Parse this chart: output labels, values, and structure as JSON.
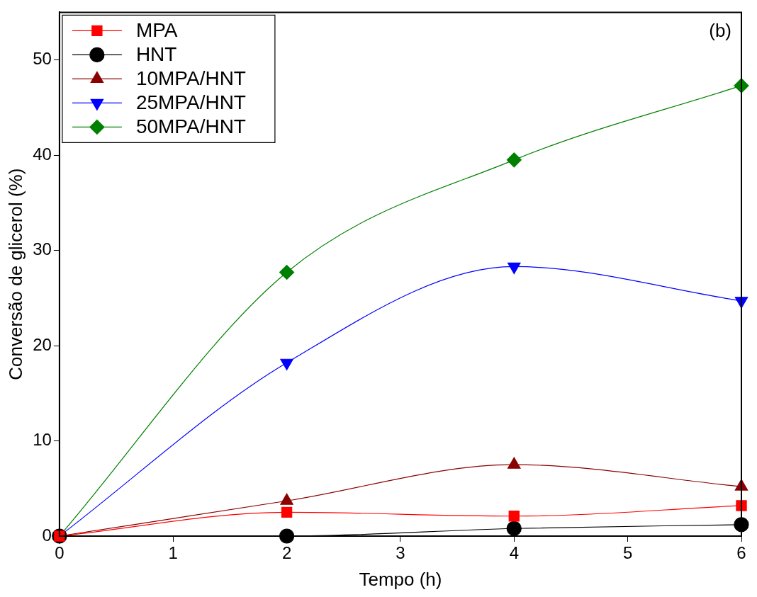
{
  "chart_data": {
    "type": "line",
    "xlabel": "Tempo (h)",
    "ylabel": "Conversão de glicerol (%)",
    "x": [
      0,
      2,
      4,
      6
    ],
    "series": [
      {
        "name": "MPA",
        "color": "#ff0000",
        "marker": "square",
        "values": [
          0,
          2.5,
          2.1,
          3.2
        ]
      },
      {
        "name": "HNT",
        "color": "#000000",
        "marker": "circle",
        "values": [
          0,
          0,
          0.8,
          1.2
        ]
      },
      {
        "name": "10MPA/HNT",
        "color": "#8b0000",
        "marker": "triangle",
        "values": [
          0,
          3.7,
          7.5,
          5.2
        ]
      },
      {
        "name": "25MPA/HNT",
        "color": "#0000ff",
        "marker": "triangle_down",
        "values": [
          0,
          18.2,
          28.3,
          24.7
        ]
      },
      {
        "name": "50MPA/HNT",
        "color": "#008000",
        "marker": "diamond",
        "values": [
          0,
          27.7,
          39.5,
          47.3
        ]
      }
    ],
    "xlim": [
      0,
      6
    ],
    "xticks": [
      0,
      1,
      2,
      3,
      4,
      5,
      6
    ],
    "ylim": [
      0,
      55
    ],
    "yticks": [
      0,
      10,
      20,
      30,
      40,
      50
    ],
    "legend": "top left",
    "grid": false,
    "line_style": "solid",
    "annotations": [
      "(b)"
    ]
  }
}
